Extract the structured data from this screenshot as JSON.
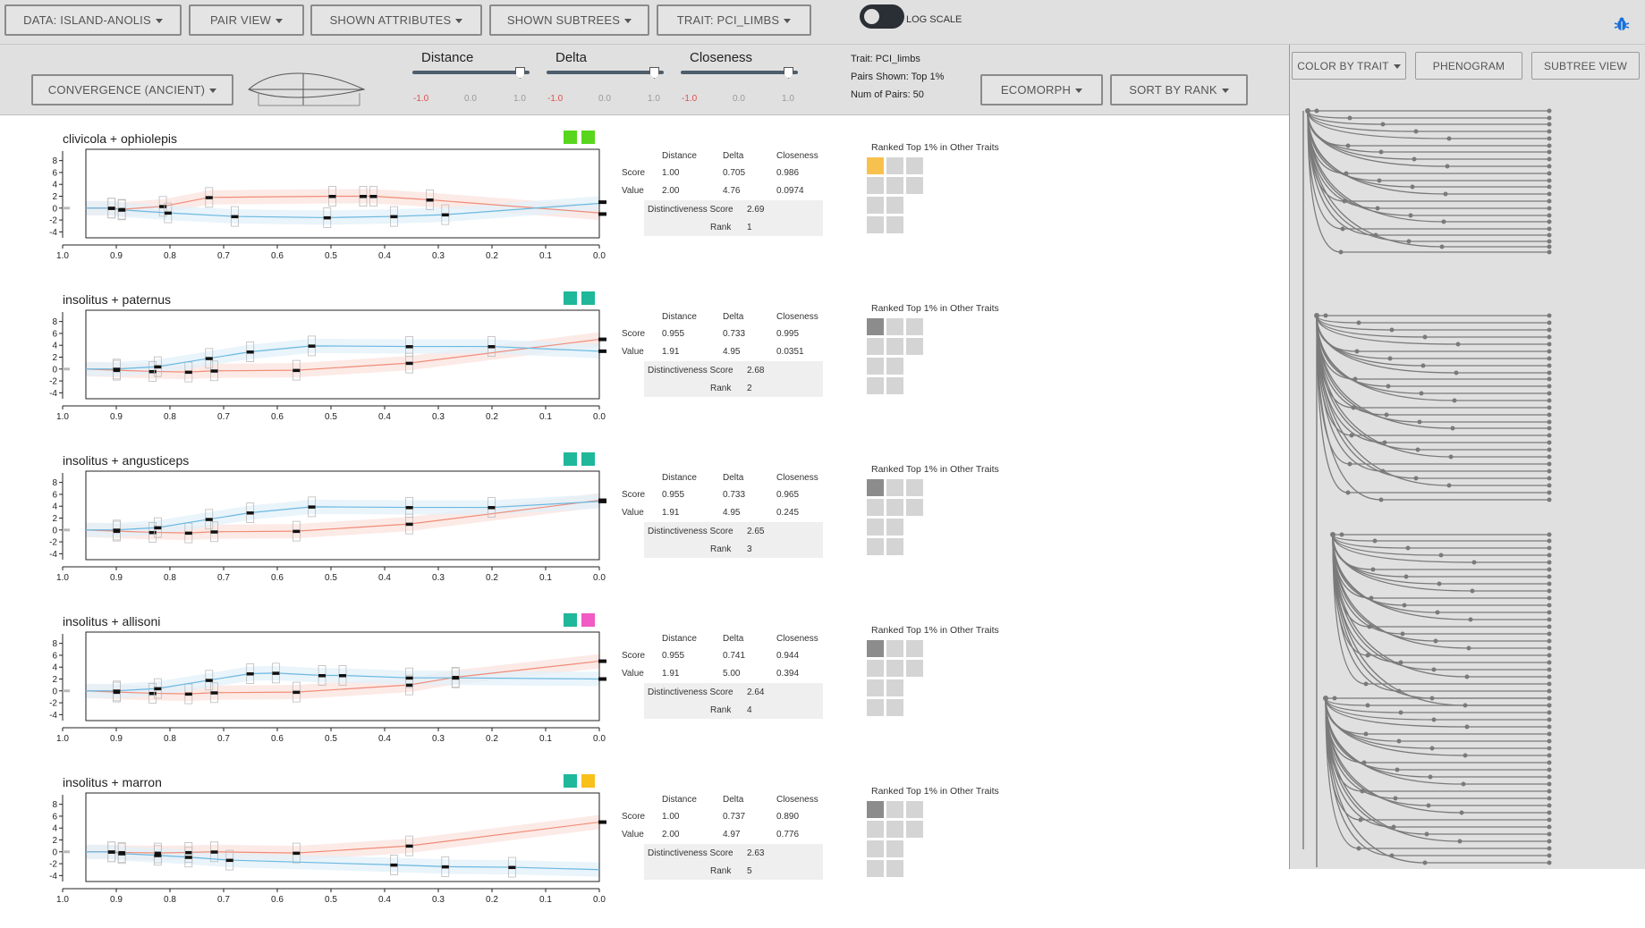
{
  "toolbar": {
    "data_label": "DATA: ISLAND-ANOLIS",
    "pair_view_label": "PAIR VIEW",
    "shown_attributes_label": "SHOWN ATTRIBUTES",
    "shown_subtrees_label": "SHOWN SUBTREES",
    "trait_label": "TRAIT: PCI_LIMBS",
    "log_scale_label": "LOG SCALE",
    "log_scale_on": true
  },
  "controls": {
    "convergence_label": "CONVERGENCE (ANCIENT)",
    "sliders": [
      {
        "name": "Distance",
        "min": "-1.0",
        "mid": "0.0",
        "max": "1.0",
        "value": 1.0
      },
      {
        "name": "Delta",
        "min": "-1.0",
        "mid": "0.0",
        "max": "1.0",
        "value": 1.0
      },
      {
        "name": "Closeness",
        "min": "-1.0",
        "mid": "0.0",
        "max": "1.0",
        "value": 1.0
      }
    ],
    "info": {
      "trait": "Trait: PCI_limbs",
      "pairs_shown": "Pairs Shown: Top 1%",
      "num_pairs": "Num of Pairs: 50"
    },
    "ecomorph_label": "ECOMORPH",
    "sort_label": "SORT BY RANK"
  },
  "right_panel": {
    "color_by_trait_label": "COLOR BY TRAIT",
    "phenogram_label": "PHENOGRAM",
    "subtree_view_label": "SUBTREE VIEW"
  },
  "stats_headers": {
    "distance": "Distance",
    "delta": "Delta",
    "closeness": "Closeness",
    "score": "Score",
    "value": "Value",
    "distinctiveness": "Distinctiveness Score",
    "rank": "Rank"
  },
  "grid_title": "Ranked Top 1% in Other Traits",
  "x_ticks": [
    "1.0",
    "0.9",
    "0.8",
    "0.7",
    "0.6",
    "0.5",
    "0.4",
    "0.3",
    "0.2",
    "0.1",
    "0.0"
  ],
  "y_ticks": [
    "8",
    "6",
    "4",
    "2",
    "0",
    "-2",
    "-4"
  ],
  "colors": {
    "red_series": "#f08c78",
    "blue_series": "#6bb8e0",
    "red_band": "#fbe3dd",
    "blue_band": "#e2f0fa",
    "highlight": "#f7c14e",
    "dark_cell": "#8c8c8c"
  },
  "pairs": [
    {
      "title": "clivicola + ophiolepis",
      "swatches": [
        "#58d61e",
        "#58d61e"
      ],
      "score": {
        "distance": "1.00",
        "delta": "0.705",
        "closeness": "0.986"
      },
      "value": {
        "distance": "2.00",
        "delta": "4.76",
        "closeness": "0.0974"
      },
      "distinctiveness": "2.69",
      "rank": "1",
      "first_cell": "highlight",
      "chart": {
        "red": [
          [
            1.0,
            0
          ],
          [
            0.95,
            0
          ],
          [
            0.93,
            -0.2
          ],
          [
            0.85,
            0.3
          ],
          [
            0.76,
            1.8
          ],
          [
            0.52,
            2
          ],
          [
            0.46,
            2
          ],
          [
            0.44,
            2
          ],
          [
            0.33,
            1.4
          ],
          [
            0.0,
            -0.8
          ]
        ],
        "blue": [
          [
            1.0,
            0
          ],
          [
            0.95,
            0
          ],
          [
            0.93,
            -0.3
          ],
          [
            0.84,
            -0.8
          ],
          [
            0.71,
            -1.4
          ],
          [
            0.53,
            -1.6
          ],
          [
            0.4,
            -1.4
          ],
          [
            0.3,
            -1.1
          ],
          [
            0.0,
            0.8
          ]
        ],
        "end_markers": [
          1,
          -1
        ]
      }
    },
    {
      "title": "insolitus + paternus",
      "swatches": [
        "#1fb89a",
        "#1fb89a"
      ],
      "score": {
        "distance": "0.955",
        "delta": "0.733",
        "closeness": "0.995"
      },
      "value": {
        "distance": "1.91",
        "delta": "4.95",
        "closeness": "0.0351"
      },
      "distinctiveness": "2.68",
      "rank": "2",
      "first_cell": "dark",
      "chart": {
        "blue": [
          [
            1.0,
            0
          ],
          [
            0.94,
            0
          ],
          [
            0.86,
            0.4
          ],
          [
            0.76,
            1.8
          ],
          [
            0.68,
            2.9
          ],
          [
            0.56,
            3.9
          ],
          [
            0.37,
            3.8
          ],
          [
            0.21,
            3.8
          ],
          [
            0.0,
            3
          ]
        ],
        "red": [
          [
            1.0,
            0
          ],
          [
            0.94,
            -0.2
          ],
          [
            0.87,
            -0.4
          ],
          [
            0.8,
            -0.5
          ],
          [
            0.75,
            -0.3
          ],
          [
            0.59,
            -0.2
          ],
          [
            0.37,
            1
          ],
          [
            0.0,
            5
          ]
        ],
        "end_markers": [
          5,
          3
        ]
      }
    },
    {
      "title": "insolitus + angusticeps",
      "swatches": [
        "#1fb89a",
        "#1fb89a"
      ],
      "score": {
        "distance": "0.955",
        "delta": "0.733",
        "closeness": "0.965"
      },
      "value": {
        "distance": "1.91",
        "delta": "4.95",
        "closeness": "0.245"
      },
      "distinctiveness": "2.65",
      "rank": "3",
      "first_cell": "dark",
      "chart": {
        "blue": [
          [
            1.0,
            0
          ],
          [
            0.94,
            0
          ],
          [
            0.86,
            0.4
          ],
          [
            0.76,
            1.8
          ],
          [
            0.68,
            2.9
          ],
          [
            0.56,
            3.9
          ],
          [
            0.37,
            3.8
          ],
          [
            0.21,
            3.8
          ],
          [
            0.0,
            4.8
          ]
        ],
        "red": [
          [
            1.0,
            0
          ],
          [
            0.94,
            -0.2
          ],
          [
            0.87,
            -0.4
          ],
          [
            0.8,
            -0.5
          ],
          [
            0.75,
            -0.3
          ],
          [
            0.59,
            -0.2
          ],
          [
            0.37,
            1
          ],
          [
            0.0,
            5
          ]
        ],
        "end_markers": [
          5,
          4.8
        ]
      }
    },
    {
      "title": "insolitus + allisoni",
      "swatches": [
        "#1fb89a",
        "#f05bc4"
      ],
      "score": {
        "distance": "0.955",
        "delta": "0.741",
        "closeness": "0.944"
      },
      "value": {
        "distance": "1.91",
        "delta": "5.00",
        "closeness": "0.394"
      },
      "distinctiveness": "2.64",
      "rank": "4",
      "first_cell": "dark",
      "chart": {
        "blue": [
          [
            1.0,
            0
          ],
          [
            0.94,
            0
          ],
          [
            0.86,
            0.4
          ],
          [
            0.76,
            1.8
          ],
          [
            0.68,
            2.9
          ],
          [
            0.63,
            3
          ],
          [
            0.54,
            2.6
          ],
          [
            0.5,
            2.6
          ],
          [
            0.37,
            2.2
          ],
          [
            0.28,
            2.2
          ],
          [
            0.0,
            2
          ]
        ],
        "red": [
          [
            1.0,
            0
          ],
          [
            0.94,
            -0.2
          ],
          [
            0.87,
            -0.4
          ],
          [
            0.8,
            -0.5
          ],
          [
            0.75,
            -0.3
          ],
          [
            0.59,
            -0.2
          ],
          [
            0.37,
            1
          ],
          [
            0.28,
            2.3
          ],
          [
            0.0,
            5
          ]
        ],
        "end_markers": [
          5,
          2
        ]
      }
    },
    {
      "title": "insolitus + marron",
      "swatches": [
        "#1fb89a",
        "#f7c11a"
      ],
      "score": {
        "distance": "1.00",
        "delta": "0.737",
        "closeness": "0.890"
      },
      "value": {
        "distance": "2.00",
        "delta": "4.97",
        "closeness": "0.776"
      },
      "distinctiveness": "2.63",
      "rank": "5",
      "first_cell": "dark",
      "chart": {
        "red": [
          [
            1.0,
            0
          ],
          [
            0.95,
            0
          ],
          [
            0.93,
            -0.1
          ],
          [
            0.86,
            -0.2
          ],
          [
            0.8,
            -0.1
          ],
          [
            0.75,
            0
          ],
          [
            0.59,
            -0.2
          ],
          [
            0.37,
            1
          ],
          [
            0.0,
            5
          ]
        ],
        "blue": [
          [
            1.0,
            0
          ],
          [
            0.95,
            0
          ],
          [
            0.93,
            -0.3
          ],
          [
            0.86,
            -0.6
          ],
          [
            0.8,
            -0.9
          ],
          [
            0.72,
            -1.4
          ],
          [
            0.4,
            -2.2
          ],
          [
            0.3,
            -2.5
          ],
          [
            0.17,
            -2.6
          ],
          [
            0.0,
            -3
          ]
        ],
        "end_markers": [
          5
        ]
      }
    }
  ]
}
